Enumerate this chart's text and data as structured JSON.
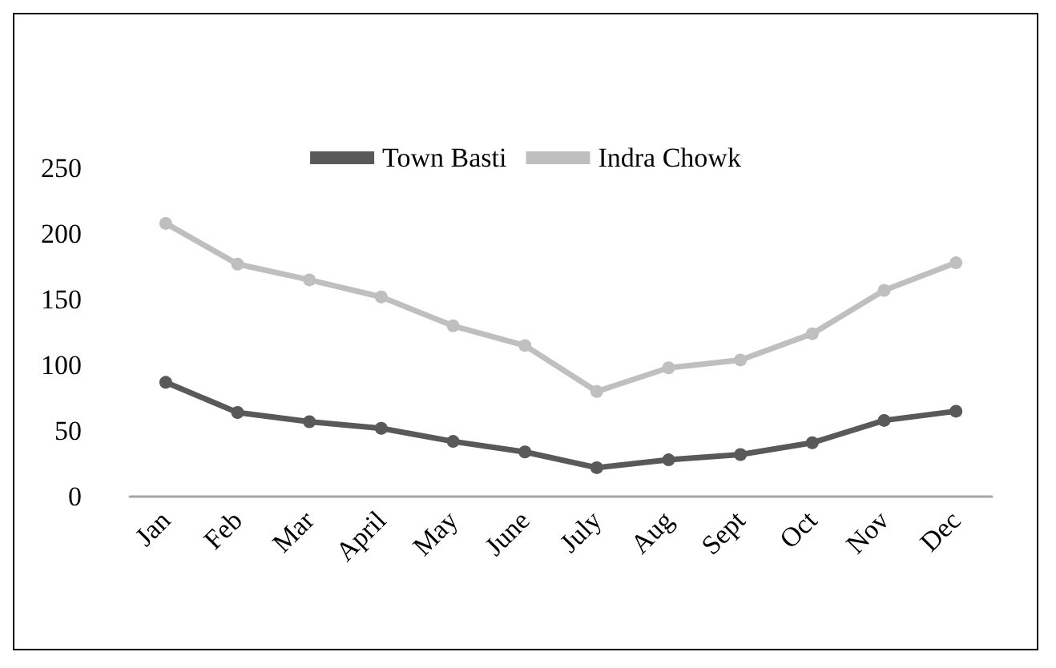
{
  "chart_data": {
    "type": "line",
    "categories": [
      "Jan",
      "Feb",
      "Mar",
      "April",
      "May",
      "June",
      "July",
      "Aug",
      "Sept",
      "Oct",
      "Nov",
      "Dec"
    ],
    "series": [
      {
        "name": "Town Basti",
        "color": "#595959",
        "values": [
          87,
          64,
          57,
          52,
          42,
          34,
          22,
          28,
          32,
          41,
          58,
          65
        ]
      },
      {
        "name": "Indra Chowk",
        "color": "#bfbfbf",
        "values": [
          208,
          177,
          165,
          152,
          130,
          115,
          80,
          98,
          104,
          124,
          157,
          178
        ]
      }
    ],
    "ylim": [
      0,
      250
    ],
    "yticks": [
      0,
      50,
      100,
      150,
      200,
      250
    ],
    "grid": false,
    "legend": "top",
    "marker": "circle",
    "line_style": "solid"
  }
}
